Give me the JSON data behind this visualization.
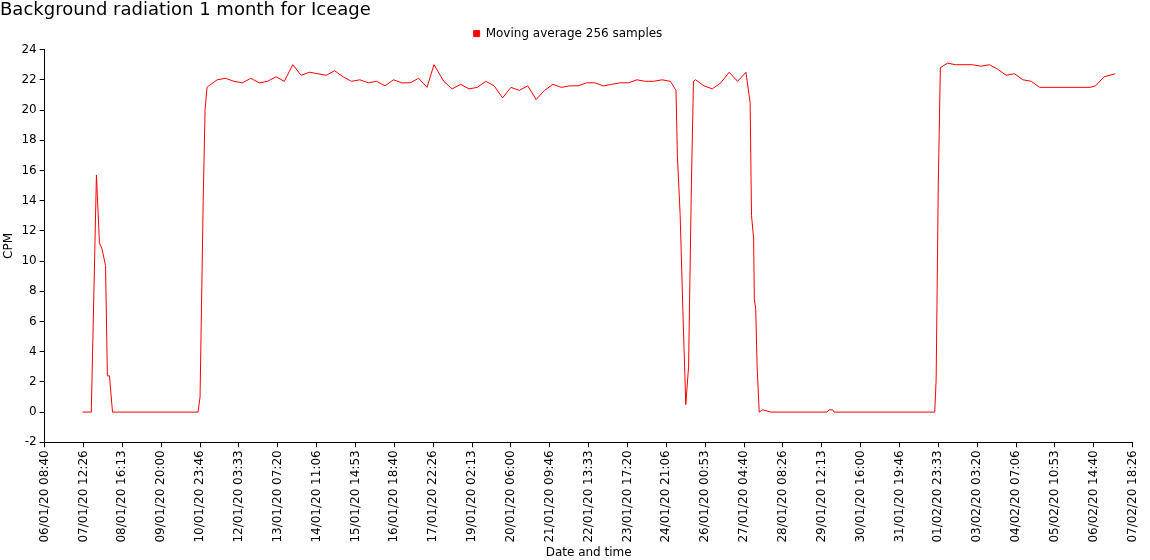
{
  "chart_data": {
    "type": "line",
    "title": "Background radiation 1 month for Iceage",
    "xlabel": "Date and time",
    "ylabel": "CPM",
    "legend": "top",
    "grid": false,
    "marker": "none",
    "line_style": "solid",
    "xlim": [
      "--01-06T08:40",
      "--02-07T18:26"
    ],
    "xticks": [
      {
        "value": "--01-06T08:40",
        "label": "06/01/20 08:40"
      },
      {
        "value": "--01-07T12:26",
        "label": "07/01/20 12:26"
      },
      {
        "value": "--01-08T16:13",
        "label": "08/01/20 16:13"
      },
      {
        "value": "--01-09T20:00",
        "label": "09/01/20 20:00"
      },
      {
        "value": "--01-10T23:46",
        "label": "10/01/20 23:46"
      },
      {
        "value": "--01-12T03:33",
        "label": "12/01/20 03:33"
      },
      {
        "value": "--01-13T07:20",
        "label": "13/01/20 07:20"
      },
      {
        "value": "--01-14T11:06",
        "label": "14/01/20 11:06"
      },
      {
        "value": "--01-15T14:53",
        "label": "15/01/20 14:53"
      },
      {
        "value": "--01-16T18:40",
        "label": "16/01/20 18:40"
      },
      {
        "value": "--01-17T22:26",
        "label": "17/01/20 22:26"
      },
      {
        "value": "--01-19T02:13",
        "label": "19/01/20 02:13"
      },
      {
        "value": "--01-20T06:00",
        "label": "20/01/20 06:00"
      },
      {
        "value": "--01-21T09:46",
        "label": "21/01/20 09:46"
      },
      {
        "value": "--01-22T13:33",
        "label": "22/01/20 13:33"
      },
      {
        "value": "--01-23T17:20",
        "label": "23/01/20 17:20"
      },
      {
        "value": "--01-24T21:06",
        "label": "24/01/20 21:06"
      },
      {
        "value": "--01-26T00:53",
        "label": "26/01/20 00:53"
      },
      {
        "value": "--01-27T04:40",
        "label": "27/01/20 04:40"
      },
      {
        "value": "--01-28T08:26",
        "label": "28/01/20 08:26"
      },
      {
        "value": "--01-29T12:13",
        "label": "29/01/20 12:13"
      },
      {
        "value": "--01-30T16:00",
        "label": "30/01/20 16:00"
      },
      {
        "value": "--01-31T19:46",
        "label": "31/01/20 19:46"
      },
      {
        "value": "--02-01T23:33",
        "label": "01/02/20 23:33"
      },
      {
        "value": "--02-03T03:20",
        "label": "03/02/20 03:20"
      },
      {
        "value": "--02-04T07:06",
        "label": "04/02/20 07:06"
      },
      {
        "value": "--02-05T10:53",
        "label": "05/02/20 10:53"
      },
      {
        "value": "--02-06T14:40",
        "label": "06/02/20 14:40"
      },
      {
        "value": "--02-07T18:26",
        "label": "07/02/20 18:26"
      }
    ],
    "ylim": [
      -2,
      24
    ],
    "yticks": [
      -2,
      0,
      2,
      4,
      6,
      8,
      10,
      12,
      14,
      16,
      18,
      20,
      22,
      24
    ],
    "series": [
      {
        "name": "Moving average 256 samples",
        "color": "#ff0000",
        "x": [
          "--01-07T11:45",
          "--01-07T18:00",
          "--01-07T21:40",
          "--01-07T23:50",
          "--01-08T01:40",
          "--01-08T04:10",
          "--01-08T05:30",
          "--01-08T07:00",
          "--01-08T09:10",
          "--01-10T22:20",
          "--01-10T23:45",
          "--01-11T02:00",
          "--01-11T03:20",
          "--01-11T04:45",
          "--01-11T06:00",
          "--01-11T12:00",
          "--01-11T18:00",
          "--01-12T00:00",
          "--01-12T06:00",
          "--01-12T12:00",
          "--01-12T18:00",
          "--01-13T00:00",
          "--01-13T06:00",
          "--01-13T12:00",
          "--01-13T18:00",
          "--01-14T00:00",
          "--01-14T06:00",
          "--01-14T12:00",
          "--01-14T18:00",
          "--01-15T00:00",
          "--01-15T06:00",
          "--01-15T12:00",
          "--01-15T18:00",
          "--01-16T00:00",
          "--01-16T06:00",
          "--01-16T12:00",
          "--01-16T18:00",
          "--01-17T00:00",
          "--01-17T06:00",
          "--01-17T12:00",
          "--01-17T18:00",
          "--01-17T21:00",
          "--01-17T23:00",
          "--01-18T06:00",
          "--01-18T12:00",
          "--01-18T18:00",
          "--01-19T00:00",
          "--01-19T06:00",
          "--01-19T12:00",
          "--01-19T18:00",
          "--01-20T00:00",
          "--01-20T06:00",
          "--01-20T12:00",
          "--01-20T18:00",
          "--01-21T00:00",
          "--01-21T06:00",
          "--01-21T12:00",
          "--01-21T18:00",
          "--01-22T00:00",
          "--01-22T06:00",
          "--01-22T12:00",
          "--01-22T18:00",
          "--01-23T00:00",
          "--01-23T06:00",
          "--01-23T12:00",
          "--01-23T18:00",
          "--01-24T00:00",
          "--01-24T06:00",
          "--01-24T12:00",
          "--01-24T18:00",
          "--01-25T00:00",
          "--01-25T04:00",
          "--01-25T05:00",
          "--01-25T07:00",
          "--01-25T09:00",
          "--01-25T11:00",
          "--01-25T13:00",
          "--01-25T15:00",
          "--01-25T16:30",
          "--01-25T18:00",
          "--01-26T00:00",
          "--01-26T06:00",
          "--01-26T12:00",
          "--01-26T18:00",
          "--01-27T00:00",
          "--01-27T06:00",
          "--01-27T09:00",
          "--01-27T10:00",
          "--01-27T11:30",
          "--01-27T12:00",
          "--01-27T13:00",
          "--01-27T14:00",
          "--01-27T15:30",
          "--01-27T18:00",
          "--01-28T00:00",
          "--01-29T16:00",
          "--01-29T17:30",
          "--01-29T20:00",
          "--01-29T21:00",
          "--02-01T21:00",
          "--02-01T22:00",
          "--02-01T23:30",
          "--02-02T01:00",
          "--02-02T06:00",
          "--02-02T12:00",
          "--02-02T18:00",
          "--02-03T00:00",
          "--02-03T06:00",
          "--02-03T12:00",
          "--02-03T18:00",
          "--02-04T00:00",
          "--02-04T06:00",
          "--02-04T12:00",
          "--02-04T18:00",
          "--02-05T00:00",
          "--02-06T12:00",
          "--02-06T16:00",
          "--02-06T22:00",
          "--02-07T06:00"
        ],
        "values": [
          0,
          0,
          15.7,
          11.2,
          10.8,
          9.7,
          2.4,
          2.4,
          0,
          0,
          1,
          14,
          20,
          21.5,
          21.6,
          22.0,
          22.1,
          21.9,
          21.8,
          22.1,
          21.8,
          21.9,
          22.2,
          21.9,
          23.0,
          22.3,
          22.5,
          22.4,
          22.3,
          22.6,
          22.2,
          21.9,
          22.0,
          21.8,
          21.9,
          21.6,
          22.0,
          21.8,
          21.8,
          22.1,
          21.5,
          22.4,
          23.0,
          21.9,
          21.4,
          21.7,
          21.4,
          21.5,
          21.9,
          21.6,
          20.8,
          21.5,
          21.3,
          21.6,
          20.7,
          21.3,
          21.7,
          21.5,
          21.6,
          21.6,
          21.8,
          21.8,
          21.6,
          21.7,
          21.8,
          21.8,
          22.0,
          21.9,
          21.9,
          22.0,
          21.9,
          21.3,
          17,
          13,
          6.5,
          0.5,
          3,
          15,
          21.9,
          22.0,
          21.6,
          21.4,
          21.8,
          22.5,
          21.9,
          22.5,
          20.5,
          13,
          11.5,
          7.5,
          6.8,
          3,
          0,
          0.15,
          0,
          0,
          0.15,
          0.15,
          0,
          0,
          2.2,
          15,
          22.8,
          23.1,
          23.0,
          23.0,
          23.0,
          22.9,
          23.0,
          22.7,
          22.3,
          22.4,
          22.0,
          21.9,
          21.5,
          21.5,
          21.6,
          22.2,
          22.4
        ]
      }
    ]
  }
}
